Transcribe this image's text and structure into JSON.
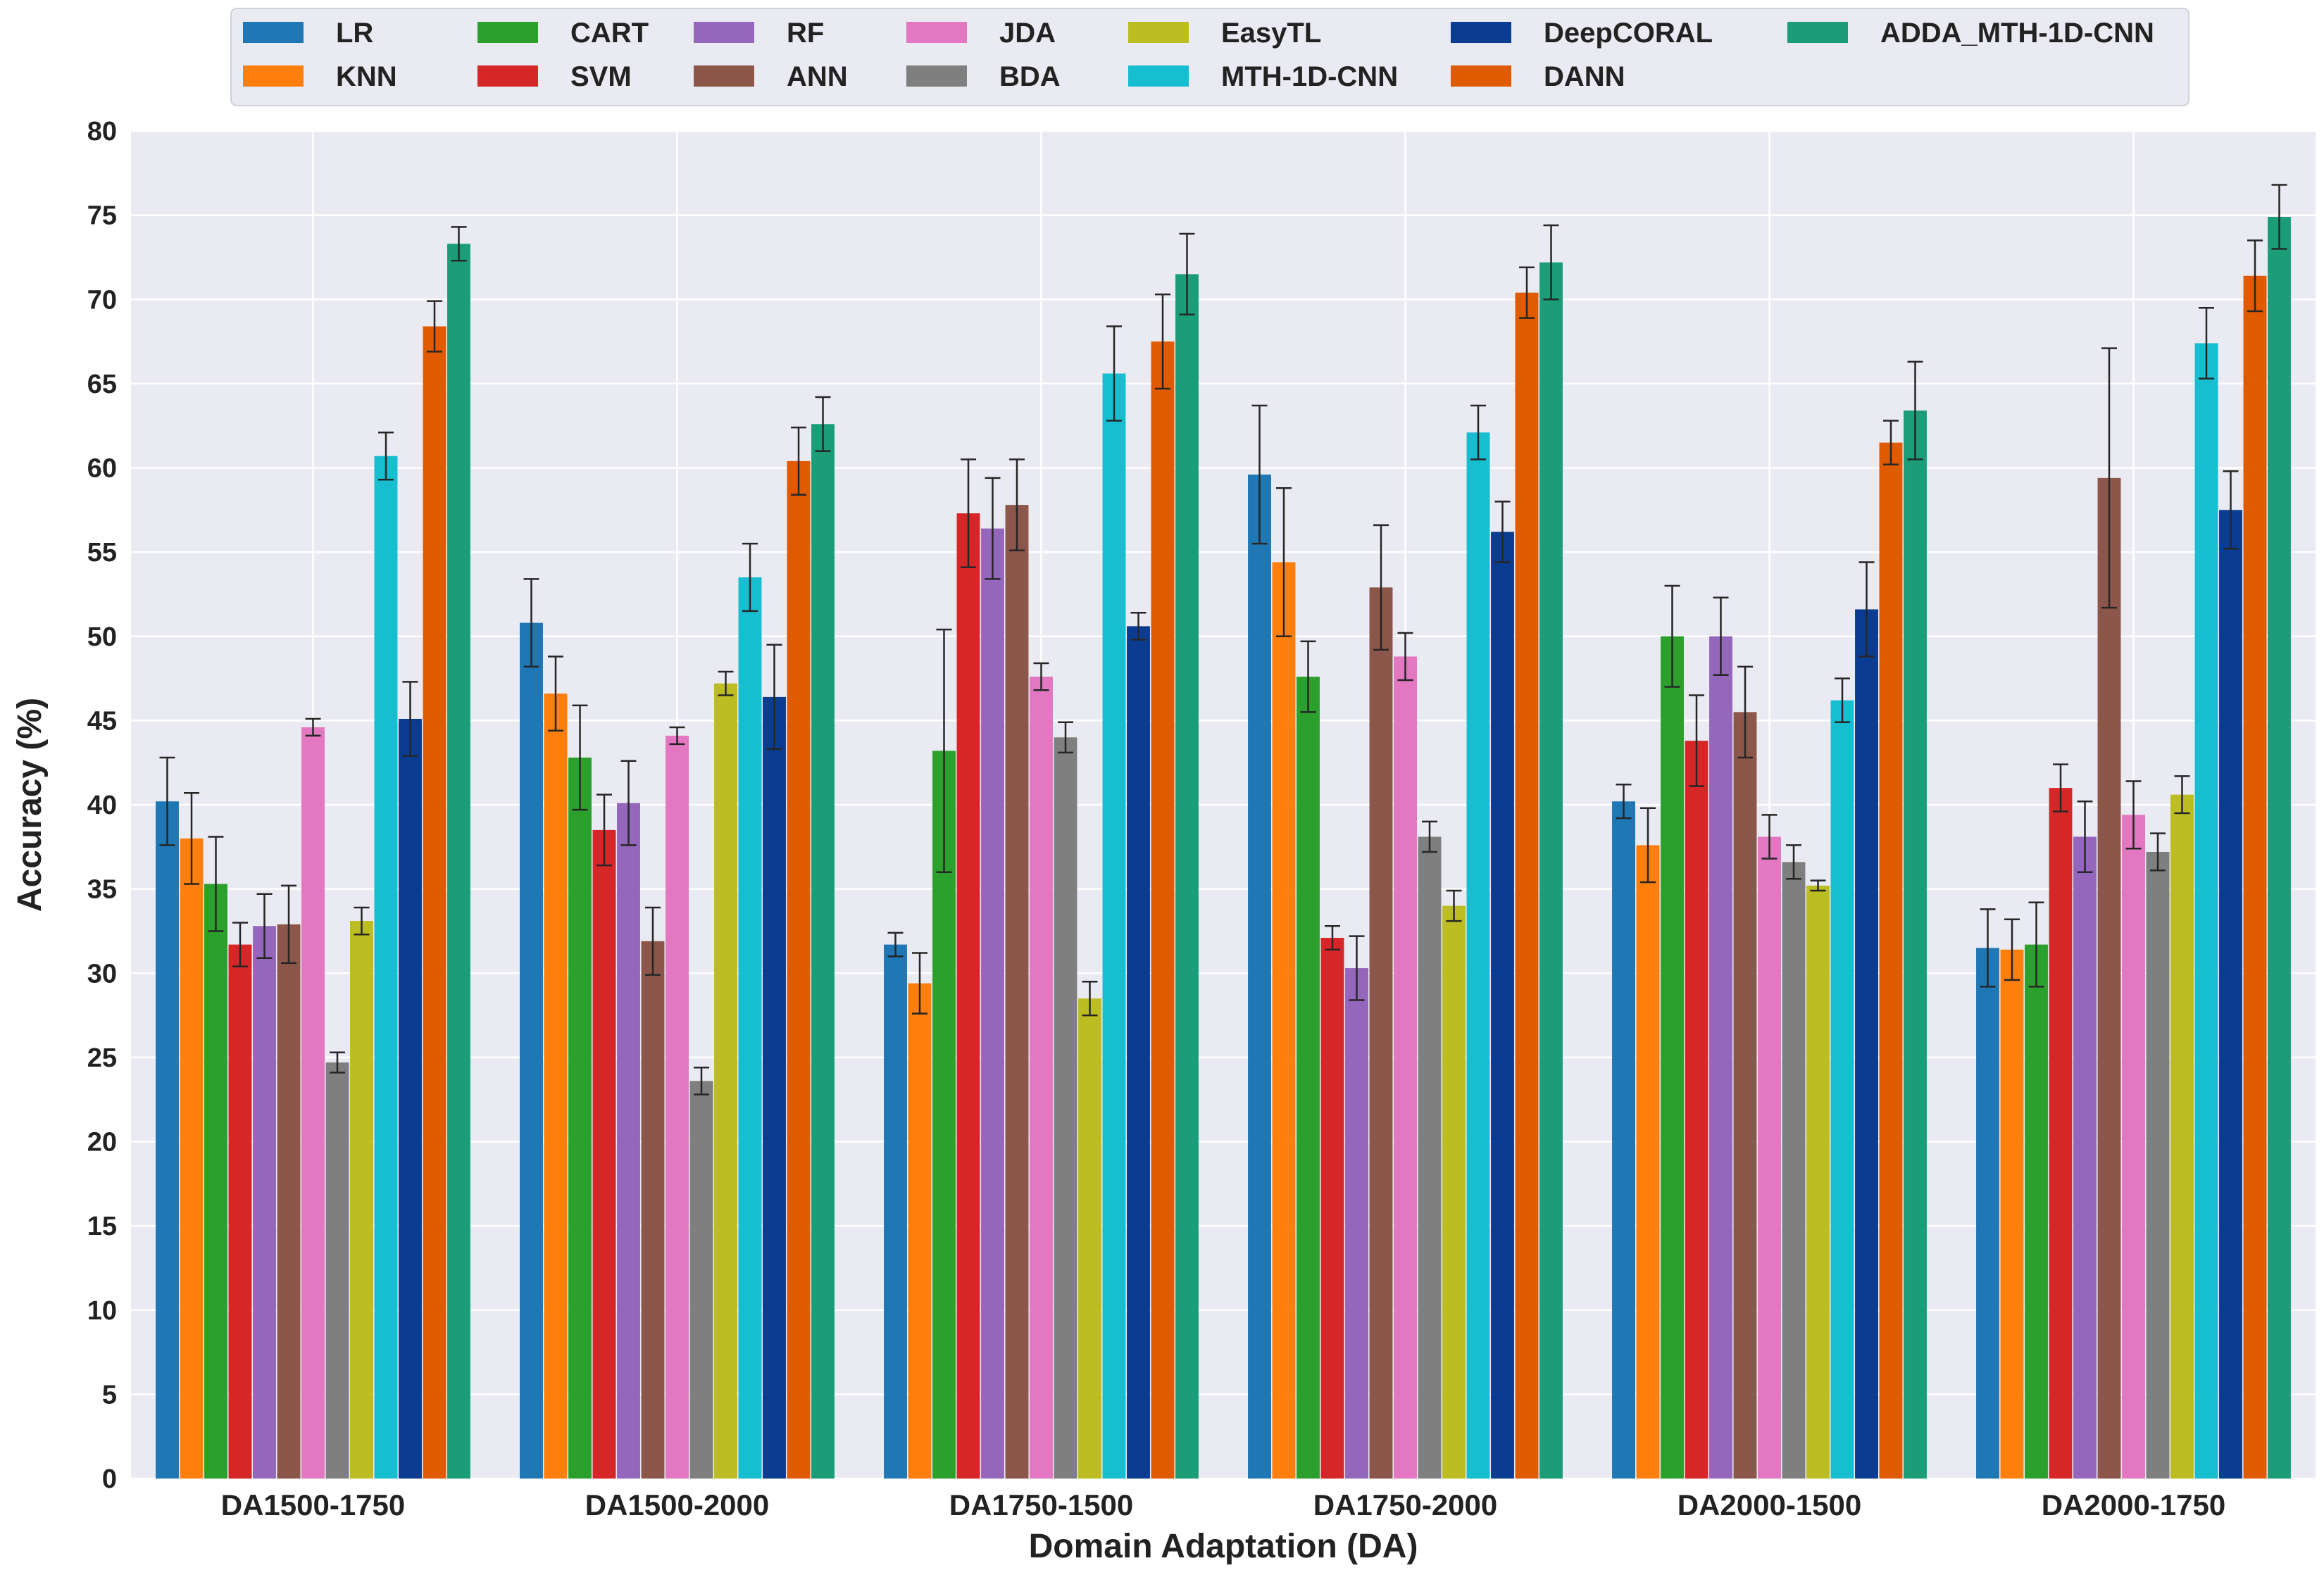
{
  "chart_data": {
    "type": "bar",
    "title": "",
    "xlabel": "Domain Adaptation (DA)",
    "ylabel": "Accuracy (%)",
    "ylim": [
      0,
      80
    ],
    "yticks": [
      0,
      5,
      10,
      15,
      20,
      25,
      30,
      35,
      40,
      45,
      50,
      55,
      60,
      65,
      70,
      75,
      80
    ],
    "grid": true,
    "legend_position": "top",
    "categories": [
      "DA1500-1750",
      "DA1500-2000",
      "DA1750-1500",
      "DA1750-2000",
      "DA2000-1500",
      "DA2000-1750"
    ],
    "series": [
      {
        "name": "LR",
        "color": "#1f77b4",
        "values": [
          40.2,
          50.8,
          31.7,
          59.6,
          40.2,
          31.5
        ],
        "errors": [
          2.6,
          2.6,
          0.7,
          4.1,
          1.0,
          2.3
        ]
      },
      {
        "name": "KNN",
        "color": "#ff7f0e",
        "values": [
          38.0,
          46.6,
          29.4,
          54.4,
          37.6,
          31.4
        ],
        "errors": [
          2.7,
          2.2,
          1.8,
          4.4,
          2.2,
          1.8
        ]
      },
      {
        "name": "CART",
        "color": "#2ca02c",
        "values": [
          35.3,
          42.8,
          43.2,
          47.6,
          50.0,
          31.7
        ],
        "errors": [
          2.8,
          3.1,
          7.2,
          2.1,
          3.0,
          2.5
        ]
      },
      {
        "name": "SVM",
        "color": "#d62728",
        "values": [
          31.7,
          38.5,
          57.3,
          32.1,
          43.8,
          41.0
        ],
        "errors": [
          1.3,
          2.1,
          3.2,
          0.7,
          2.7,
          1.4
        ]
      },
      {
        "name": "RF",
        "color": "#9467bd",
        "values": [
          32.8,
          40.1,
          56.4,
          30.3,
          50.0,
          38.1
        ],
        "errors": [
          1.9,
          2.5,
          3.0,
          1.9,
          2.3,
          2.1
        ]
      },
      {
        "name": "ANN",
        "color": "#8c564b",
        "values": [
          32.9,
          31.9,
          57.8,
          52.9,
          45.5,
          59.4
        ],
        "errors": [
          2.3,
          2.0,
          2.7,
          3.7,
          2.7,
          7.7
        ]
      },
      {
        "name": "JDA",
        "color": "#e377c2",
        "values": [
          44.6,
          44.1,
          47.6,
          48.8,
          38.1,
          39.4
        ],
        "errors": [
          0.5,
          0.5,
          0.8,
          1.4,
          1.3,
          2.0
        ]
      },
      {
        "name": "BDA",
        "color": "#7f7f7f",
        "values": [
          24.7,
          23.6,
          44.0,
          38.1,
          36.6,
          37.2
        ],
        "errors": [
          0.6,
          0.8,
          0.9,
          0.9,
          1.0,
          1.1
        ]
      },
      {
        "name": "EasyTL",
        "color": "#bcbd22",
        "values": [
          33.1,
          47.2,
          28.5,
          34.0,
          35.2,
          40.6
        ],
        "errors": [
          0.8,
          0.7,
          1.0,
          0.9,
          0.3,
          1.1
        ]
      },
      {
        "name": "MTH-1D-CNN",
        "color": "#17becf",
        "values": [
          60.7,
          53.5,
          65.6,
          62.1,
          46.2,
          67.4
        ],
        "errors": [
          1.4,
          2.0,
          2.8,
          1.6,
          1.3,
          2.1
        ]
      },
      {
        "name": "DeepCORAL",
        "color": "#0a3d91",
        "values": [
          45.1,
          46.4,
          50.6,
          56.2,
          51.6,
          57.5
        ],
        "errors": [
          2.2,
          3.1,
          0.8,
          1.8,
          2.8,
          2.3
        ]
      },
      {
        "name": "DANN",
        "color": "#e05a00",
        "values": [
          68.4,
          60.4,
          67.5,
          70.4,
          61.5,
          71.4
        ],
        "errors": [
          1.5,
          2.0,
          2.8,
          1.5,
          1.3,
          2.1
        ]
      },
      {
        "name": "ADDA_MTH-1D-CNN",
        "color": "#1b9e77",
        "values": [
          73.3,
          62.6,
          71.5,
          72.2,
          63.4,
          74.9
        ],
        "errors": [
          1.0,
          1.6,
          2.4,
          2.2,
          2.9,
          1.9
        ]
      }
    ]
  }
}
